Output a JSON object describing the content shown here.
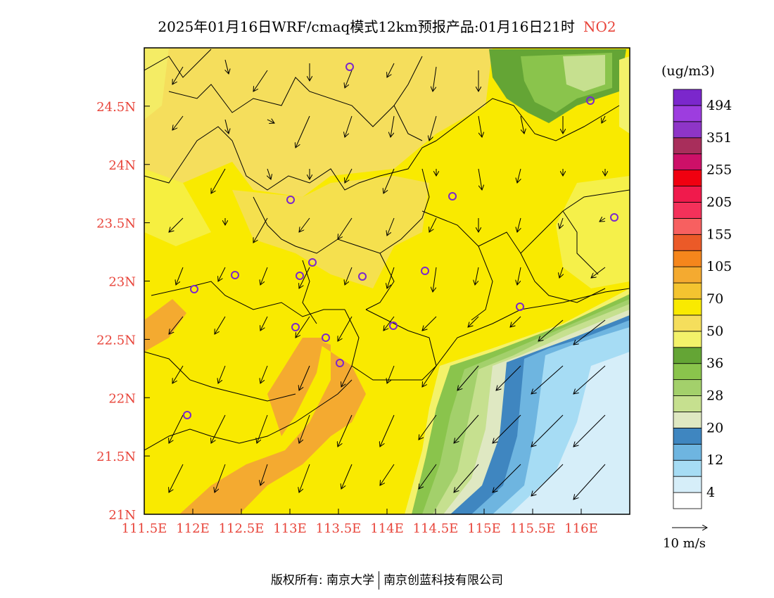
{
  "header": {
    "title": "2025年01月16日WRF/cmaq模式12km预报产品:01月16日21时",
    "pollutant": "NO2"
  },
  "map": {
    "lon_labels": [
      "111.5E",
      "112E",
      "112.5E",
      "113E",
      "113.5E",
      "114E",
      "114.5E",
      "115E",
      "115.5E",
      "116E"
    ],
    "lat_labels": [
      "21N",
      "21.5N",
      "22N",
      "22.5N",
      "23N",
      "23.5N",
      "24N",
      "24.5N"
    ],
    "lon_range": [
      111.5,
      116.5
    ],
    "lat_range": [
      21.0,
      25.0
    ],
    "label_color": "#e8443a"
  },
  "legend": {
    "unit": "(ug/m3)",
    "labels": [
      "4",
      "12",
      "20",
      "28",
      "36",
      "50",
      "70",
      "105",
      "155",
      "205",
      "255",
      "351",
      "494"
    ],
    "colors": [
      "#ffffff",
      "#d6eef9",
      "#a6dcf4",
      "#6eb5e0",
      "#3f86c0",
      "#dfe8c2",
      "#c6e08f",
      "#a3d06b",
      "#8ac44c",
      "#64a535",
      "#f3f26a",
      "#f5de5c",
      "#f9ea00",
      "#f4c430",
      "#f4aa30",
      "#f5861c",
      "#eb5a28",
      "#f76060",
      "#f4315a",
      "#f01a4c",
      "#f00010",
      "#cd1068",
      "#a82e5b",
      "#8e35c7",
      "#9d3ddf",
      "#7b27cc"
    ]
  },
  "wind": {
    "reference": "10 m/s"
  },
  "footer": {
    "copyright": "版权所有: 南京大学",
    "company": "南京创蓝科技有限公司"
  }
}
